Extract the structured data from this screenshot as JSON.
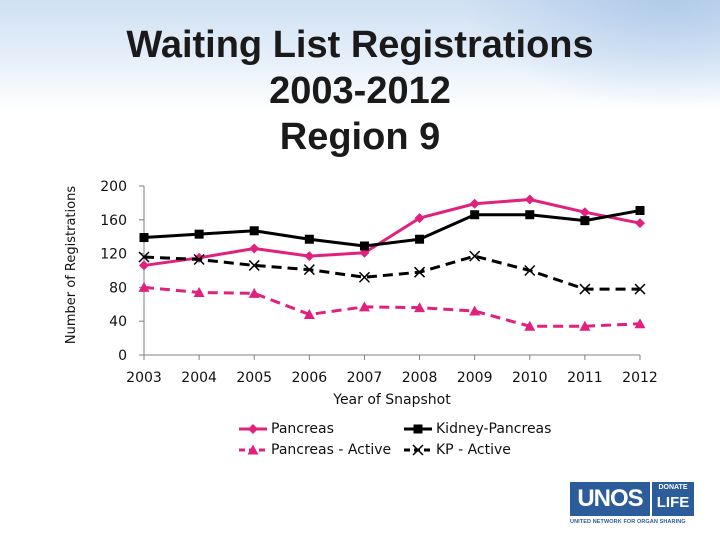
{
  "title_lines": [
    "Waiting List Registrations",
    "2003-2012",
    "Region 9"
  ],
  "chart_data": {
    "type": "line",
    "title": "Waiting List Registrations 2003-2012 Region 9",
    "xlabel": "Year of Snapshot",
    "ylabel": "Number of Registrations",
    "categories": [
      "2003",
      "2004",
      "2005",
      "2006",
      "2007",
      "2008",
      "2009",
      "2010",
      "2011",
      "2012"
    ],
    "ylim": [
      0,
      200
    ],
    "yticks": [
      0,
      40,
      80,
      120,
      160,
      200
    ],
    "grid": false,
    "legend_position": "bottom",
    "series": [
      {
        "name": "Pancreas",
        "color": "#e0217e",
        "marker": "diamond",
        "dash": "solid",
        "values": [
          106,
          115,
          126,
          117,
          121,
          162,
          179,
          184,
          169,
          156
        ]
      },
      {
        "name": "Kidney-Pancreas",
        "color": "#000000",
        "marker": "square",
        "dash": "solid",
        "values": [
          139,
          143,
          147,
          137,
          129,
          137,
          166,
          166,
          159,
          171
        ]
      },
      {
        "name": "Pancreas - Active",
        "color": "#e0217e",
        "marker": "triangle",
        "dash": "dash",
        "values": [
          80,
          74,
          73,
          48,
          57,
          56,
          52,
          34,
          34,
          37
        ]
      },
      {
        "name": "KP - Active",
        "color": "#000000",
        "marker": "x",
        "dash": "dash",
        "values": [
          116,
          113,
          106,
          101,
          92,
          98,
          117,
          100,
          78,
          78
        ]
      }
    ]
  },
  "logo": {
    "main": "UNOS",
    "donate_top": "DONATE",
    "donate_bottom": "LIFE",
    "tagline": "UNITED NETWORK FOR ORGAN SHARING",
    "color": "#2c5c9a"
  }
}
